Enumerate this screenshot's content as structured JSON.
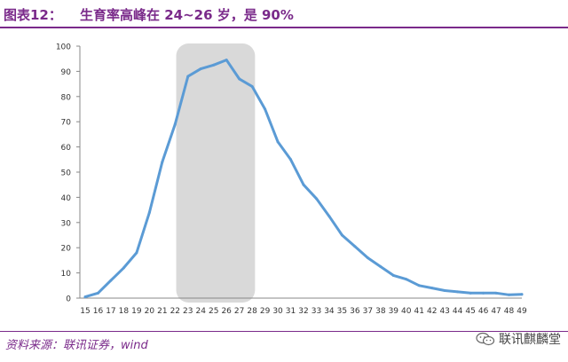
{
  "figure": {
    "label": "图表12：",
    "title": "生育率高峰在 24~26 岁，是 90%"
  },
  "source": "资料来源：联讯证券，wind",
  "watermark": {
    "icon": "wechat-icon",
    "text": "联讯麒麟堂"
  },
  "colors": {
    "title": "#7a2a8a",
    "line": "#5b9bd5",
    "highlight": "#d9d9d9"
  },
  "chart_data": {
    "type": "line",
    "x": [
      15,
      16,
      17,
      18,
      19,
      20,
      21,
      22,
      23,
      24,
      25,
      26,
      27,
      28,
      29,
      30,
      31,
      32,
      33,
      34,
      35,
      36,
      37,
      38,
      39,
      40,
      41,
      42,
      43,
      44,
      45,
      46,
      47,
      48,
      49
    ],
    "series": [
      {
        "values": [
          0.5,
          2,
          7,
          12,
          18,
          34,
          54,
          69,
          88,
          91,
          92.5,
          94.5,
          87,
          84,
          75,
          62,
          55,
          45,
          39.5,
          32.5,
          25,
          20.5,
          16,
          12.5,
          9,
          7.5,
          5,
          4,
          3,
          2.5,
          2,
          2,
          2,
          1.3,
          1.5
        ]
      }
    ],
    "highlight_range": [
      23,
      28
    ],
    "ylim": [
      0,
      100
    ],
    "y_ticks": [
      0,
      10,
      20,
      30,
      40,
      50,
      60,
      70,
      80,
      90,
      100
    ],
    "grid": false,
    "legend": "none"
  }
}
